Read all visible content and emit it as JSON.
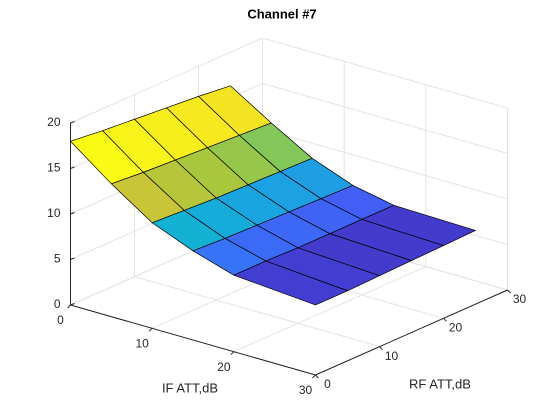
{
  "chart_data": {
    "type": "surface",
    "title": "Channel #7",
    "xlabel": "IF ATT,dB",
    "ylabel": "RF ATT,dB",
    "x": [
      0,
      5,
      10,
      15,
      20,
      30
    ],
    "y": [
      0,
      5,
      10,
      15,
      20,
      25
    ],
    "z": [
      [
        18,
        17.6,
        17.3,
        17,
        16.7,
        16.3
      ],
      [
        14.6,
        14.3,
        14.1,
        13.9,
        13.7,
        13.5
      ],
      [
        11.6,
        11.4,
        11.2,
        11.1,
        11,
        10.9
      ],
      [
        9.8,
        9.6,
        9.5,
        9.4,
        9.3,
        9.2
      ],
      [
        8.4,
        8.4,
        8.3,
        8.3,
        8.3,
        8.3
      ],
      [
        7.7,
        7.7,
        7.8,
        7.9,
        8,
        8.1
      ]
    ],
    "xlim": [
      0,
      30
    ],
    "xticks": [
      0,
      10,
      20,
      30
    ],
    "ylim": [
      0,
      30
    ],
    "yticks": [
      0,
      10,
      20,
      30
    ],
    "zlim": [
      0,
      20
    ],
    "zticks": [
      0,
      5,
      10,
      15,
      20
    ],
    "grid": true,
    "colormap": "parula"
  }
}
